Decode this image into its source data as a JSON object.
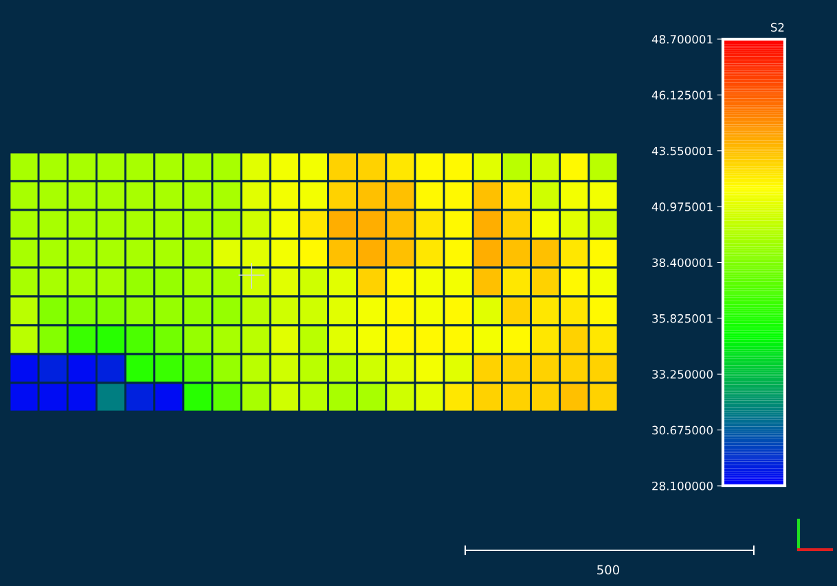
{
  "chart_data": {
    "type": "heatmap",
    "clabel": "S2",
    "categories": [
      null,
      null,
      null,
      null,
      null,
      null,
      null,
      null,
      null,
      null,
      null,
      null,
      null,
      null,
      null,
      null,
      null,
      null,
      null,
      null,
      null
    ],
    "y_categories": [
      null,
      null,
      null,
      null,
      null,
      null,
      null,
      null,
      null
    ],
    "cells": [
      [
        39.5,
        39.5,
        39.5,
        39.5,
        39.5,
        39.5,
        39.5,
        39.5,
        41,
        41.5,
        41.5,
        43,
        43,
        42.5,
        42,
        42,
        41,
        40,
        40.5,
        42,
        40
      ],
      [
        39.5,
        39.5,
        39.5,
        39.5,
        39.5,
        39.5,
        39.5,
        39.5,
        41,
        41.5,
        41.5,
        43,
        43.5,
        43.5,
        42,
        42,
        43.5,
        42.5,
        40.5,
        41.5,
        41.5
      ],
      [
        39.5,
        39.5,
        39.5,
        39.5,
        39.5,
        39.5,
        39.5,
        39.5,
        40.5,
        41.5,
        42.5,
        44,
        44,
        43.5,
        42.5,
        42,
        44,
        43,
        41.5,
        41,
        40.5
      ],
      [
        39.5,
        39.5,
        39.5,
        39.5,
        39.5,
        39.5,
        39.5,
        41,
        41,
        41.5,
        42,
        43.5,
        44,
        43.5,
        42.5,
        42,
        44,
        43.5,
        43.5,
        42.5,
        42
      ],
      [
        39.5,
        39.5,
        39.5,
        39.5,
        39,
        39,
        39.5,
        39.5,
        40.5,
        41,
        40.5,
        41,
        43,
        42,
        41.5,
        41.5,
        43.5,
        42.5,
        43,
        42,
        41.5
      ],
      [
        40,
        38.5,
        38.5,
        38.5,
        39,
        39,
        39,
        39,
        40,
        40.5,
        40.5,
        41,
        41.5,
        42,
        41.5,
        42,
        41,
        43,
        42.5,
        42.5,
        42
      ],
      [
        40,
        38.5,
        36.5,
        36,
        37,
        38,
        39,
        39.5,
        40,
        41,
        40,
        41,
        41.5,
        42,
        42,
        42,
        41.5,
        42,
        42.5,
        43,
        42.5
      ],
      [
        28.5,
        29,
        28.5,
        29,
        36,
        36.5,
        37.5,
        39,
        40,
        40.5,
        40,
        40,
        40.5,
        41,
        41.5,
        41,
        43,
        43,
        43,
        43,
        43
      ],
      [
        28.5,
        28.5,
        28.5,
        31.5,
        29,
        28.5,
        36,
        37.5,
        39.5,
        40.5,
        40,
        39.5,
        39.5,
        40.5,
        41,
        42.5,
        43,
        43,
        43,
        43.5,
        43
      ]
    ],
    "clim": [
      28.1,
      48.700001
    ],
    "cticks": [
      {
        "value": 48.700001,
        "label": "48.700001"
      },
      {
        "value": 46.125001,
        "label": "46.125001"
      },
      {
        "value": 43.550001,
        "label": "43.550001"
      },
      {
        "value": 40.975001,
        "label": "40.975001"
      },
      {
        "value": 38.400001,
        "label": "38.400001"
      },
      {
        "value": 35.825001,
        "label": "35.825001"
      },
      {
        "value": 33.25,
        "label": "33.250000"
      },
      {
        "value": 30.675,
        "label": "30.675000"
      },
      {
        "value": 28.1,
        "label": "28.100000"
      }
    ],
    "annotations": [
      "500"
    ]
  }
}
